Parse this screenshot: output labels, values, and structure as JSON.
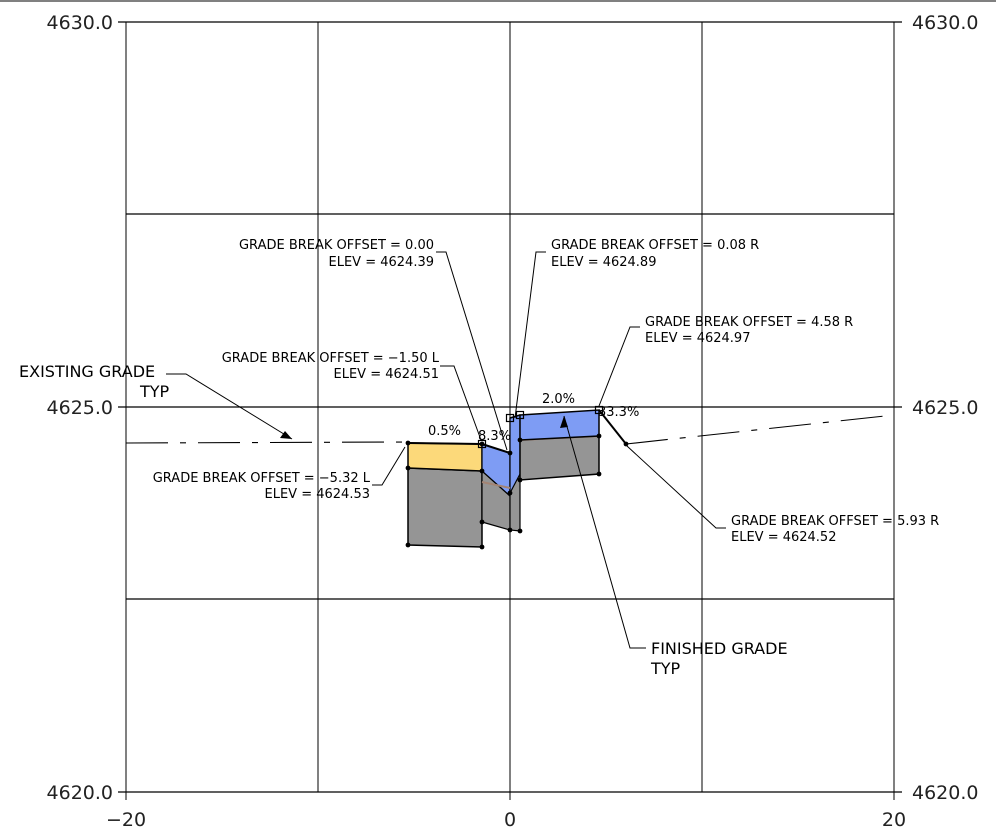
{
  "axes": {
    "elev_top": "4630.0",
    "elev_mid": "4625.0",
    "elev_bottom": "4620.0",
    "offset_left": "−20",
    "offset_center": "0",
    "offset_right": "20"
  },
  "labels": {
    "gb_0_00_offset": "GRADE BREAK OFFSET = 0.00",
    "gb_0_00_elev": "ELEV =  4624.39",
    "gb_0_08_offset": "GRADE BREAK OFFSET = 0.08 R",
    "gb_0_08_elev": "ELEV = 4624.89",
    "gb_4_58_offset": "GRADE BREAK OFFSET = 4.58 R",
    "gb_4_58_elev": "ELEV =  4624.97",
    "gb_m1_50_offset": "GRADE BREAK OFFSET = −1.50 L",
    "gb_m1_50_elev": "ELEV = 4624.51",
    "gb_m5_32_offset": "GRADE BREAK OFFSET = −5.32 L",
    "gb_m5_32_elev": "ELEV =  4624.53",
    "gb_5_93_offset": "GRADE BREAK OFFSET = 5.93 R",
    "gb_5_93_elev": "ELEV =  4624.52",
    "existing_grade_1": "EXISTING GRADE",
    "existing_grade_2": "TYP",
    "finished_grade_1": "FINISHED GRADE",
    "finished_grade_2": "TYP"
  },
  "slopes": {
    "s1": "0.5%",
    "s2": "8.3%",
    "s3": "2.0%",
    "s4": "33.3%"
  },
  "colors": {
    "surface_yellow": "#FCD97A",
    "surface_blue": "#7E9CF4",
    "base_gray": "#959595",
    "subgrade_tan": "#A38474"
  }
}
